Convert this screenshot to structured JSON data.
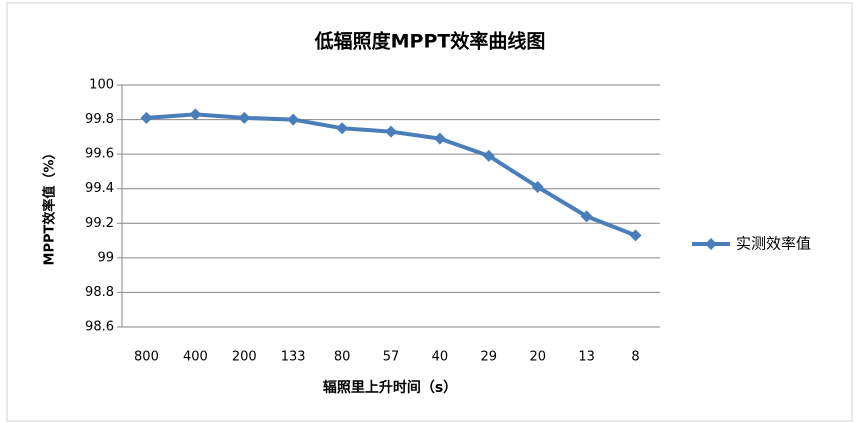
{
  "chart_data": {
    "type": "line",
    "title": "低辐照度MPPT效率曲线图",
    "x_label": "辐照里上升时间（s）",
    "y_label": "MPPT效率值（%）",
    "categories": [
      "800",
      "400",
      "200",
      "133",
      "80",
      "57",
      "40",
      "29",
      "20",
      "13",
      "8"
    ],
    "series": [
      {
        "name": "实测效率值",
        "color": "#4a7ebb",
        "values": [
          99.81,
          99.83,
          99.81,
          99.8,
          99.75,
          99.73,
          99.69,
          99.59,
          99.41,
          99.24,
          99.13
        ]
      }
    ],
    "ylim": [
      98.6,
      100
    ],
    "yticks": [
      98.6,
      98.8,
      99,
      99.2,
      99.4,
      99.6,
      99.8,
      100
    ],
    "grid": true,
    "legend": "right"
  }
}
